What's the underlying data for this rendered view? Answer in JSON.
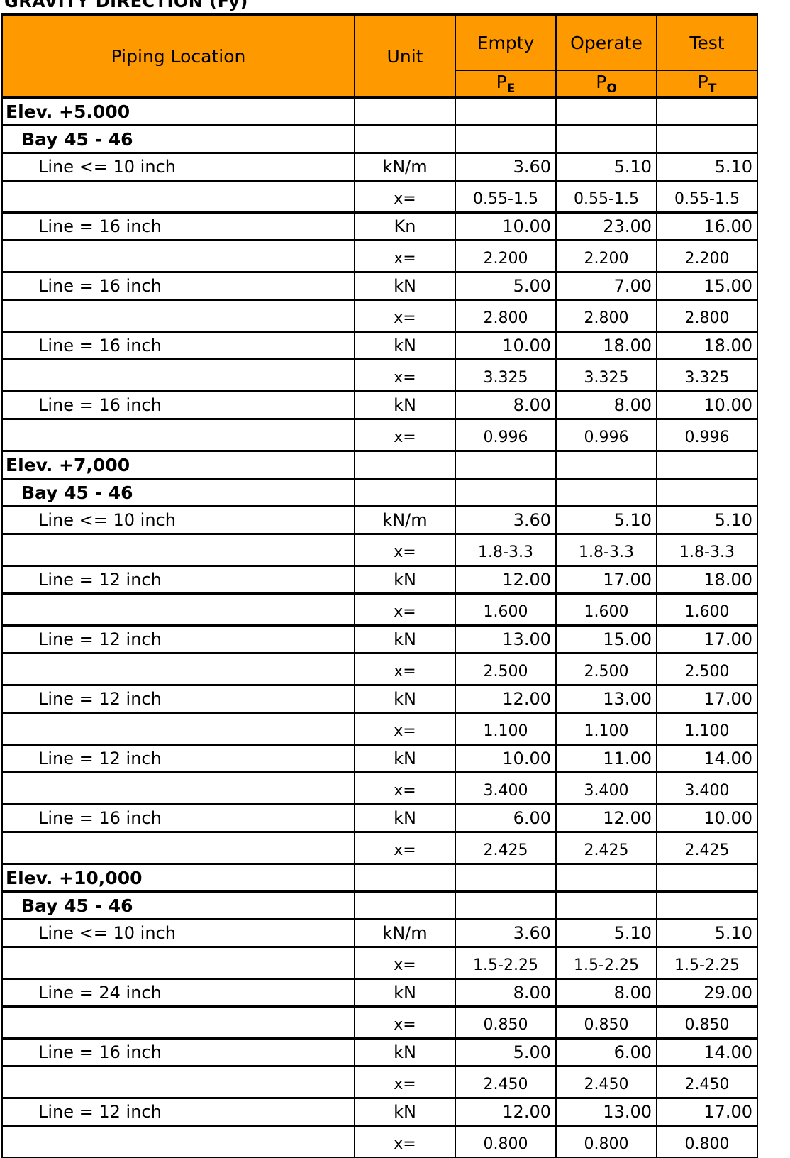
{
  "title": "GRAVITY DIRECTION (Fy)",
  "header": {
    "location": "Piping Location",
    "unit": "Unit",
    "cases": [
      {
        "label": "Empty",
        "sym": "P",
        "sub": "E"
      },
      {
        "label": "Operate",
        "sym": "P",
        "sub": "O"
      },
      {
        "label": "Test",
        "sym": "P",
        "sub": "T"
      }
    ]
  },
  "colors": {
    "header_bg": "#ff9900"
  },
  "sections": [
    {
      "elev": "Elev. +5.000",
      "bay": "Bay 45 - 46",
      "lines": [
        {
          "label": "Line <= 10 inch",
          "unit": "kN/m",
          "values": [
            "3.60",
            "5.10",
            "5.10"
          ],
          "x_label": "x=",
          "x": [
            "0.55-1.5",
            "0.55-1.5",
            "0.55-1.5"
          ]
        },
        {
          "label": "Line = 16 inch",
          "unit": "Kn",
          "values": [
            "10.00",
            "23.00",
            "16.00"
          ],
          "x_label": "x=",
          "x": [
            "2.200",
            "2.200",
            "2.200"
          ]
        },
        {
          "label": "Line = 16 inch",
          "unit": "kN",
          "values": [
            "5.00",
            "7.00",
            "15.00"
          ],
          "x_label": "x=",
          "x": [
            "2.800",
            "2.800",
            "2.800"
          ]
        },
        {
          "label": "Line = 16 inch",
          "unit": "kN",
          "values": [
            "10.00",
            "18.00",
            "18.00"
          ],
          "x_label": "x=",
          "x": [
            "3.325",
            "3.325",
            "3.325"
          ]
        },
        {
          "label": "Line = 16 inch",
          "unit": "kN",
          "values": [
            "8.00",
            "8.00",
            "10.00"
          ],
          "x_label": "x=",
          "x": [
            "0.996",
            "0.996",
            "0.996"
          ]
        }
      ]
    },
    {
      "elev": "Elev. +7,000",
      "bay": "Bay  45 - 46",
      "lines": [
        {
          "label": "Line <= 10 inch",
          "unit": "kN/m",
          "values": [
            "3.60",
            "5.10",
            "5.10"
          ],
          "x_label": "x=",
          "x": [
            "1.8-3.3",
            "1.8-3.3",
            "1.8-3.3"
          ]
        },
        {
          "label": "Line = 12 inch",
          "unit": "kN",
          "values": [
            "12.00",
            "17.00",
            "18.00"
          ],
          "x_label": "x=",
          "x": [
            "1.600",
            "1.600",
            "1.600"
          ]
        },
        {
          "label": "Line = 12 inch",
          "unit": "kN",
          "values": [
            "13.00",
            "15.00",
            "17.00"
          ],
          "x_label": "x=",
          "x": [
            "2.500",
            "2.500",
            "2.500"
          ]
        },
        {
          "label": "Line = 12 inch",
          "unit": "kN",
          "values": [
            "12.00",
            "13.00",
            "17.00"
          ],
          "x_label": "x=",
          "x": [
            "1.100",
            "1.100",
            "1.100"
          ]
        },
        {
          "label": "Line = 12 inch",
          "unit": "kN",
          "values": [
            "10.00",
            "11.00",
            "14.00"
          ],
          "x_label": "x=",
          "x": [
            "3.400",
            "3.400",
            "3.400"
          ]
        },
        {
          "label": "Line = 16 inch",
          "unit": "kN",
          "values": [
            "6.00",
            "12.00",
            "10.00"
          ],
          "x_label": "x=",
          "x": [
            "2.425",
            "2.425",
            "2.425"
          ]
        }
      ]
    },
    {
      "elev": "Elev. +10,000",
      "bay": "Bay  45 - 46",
      "lines": [
        {
          "label": "Line <= 10 inch",
          "unit": "kN/m",
          "values": [
            "3.60",
            "5.10",
            "5.10"
          ],
          "x_label": "x=",
          "x": [
            "1.5-2.25",
            "1.5-2.25",
            "1.5-2.25"
          ]
        },
        {
          "label": "Line = 24 inch",
          "unit": "kN",
          "values": [
            "8.00",
            "8.00",
            "29.00"
          ],
          "x_label": "x=",
          "x": [
            "0.850",
            "0.850",
            "0.850"
          ]
        },
        {
          "label": "Line = 16 inch",
          "unit": "kN",
          "values": [
            "5.00",
            "6.00",
            "14.00"
          ],
          "x_label": "x=",
          "x": [
            "2.450",
            "2.450",
            "2.450"
          ]
        },
        {
          "label": "Line = 12 inch",
          "unit": "kN",
          "values": [
            "12.00",
            "13.00",
            "17.00"
          ],
          "x_label": "x=",
          "x": [
            "0.800",
            "0.800",
            "0.800"
          ]
        }
      ]
    }
  ]
}
